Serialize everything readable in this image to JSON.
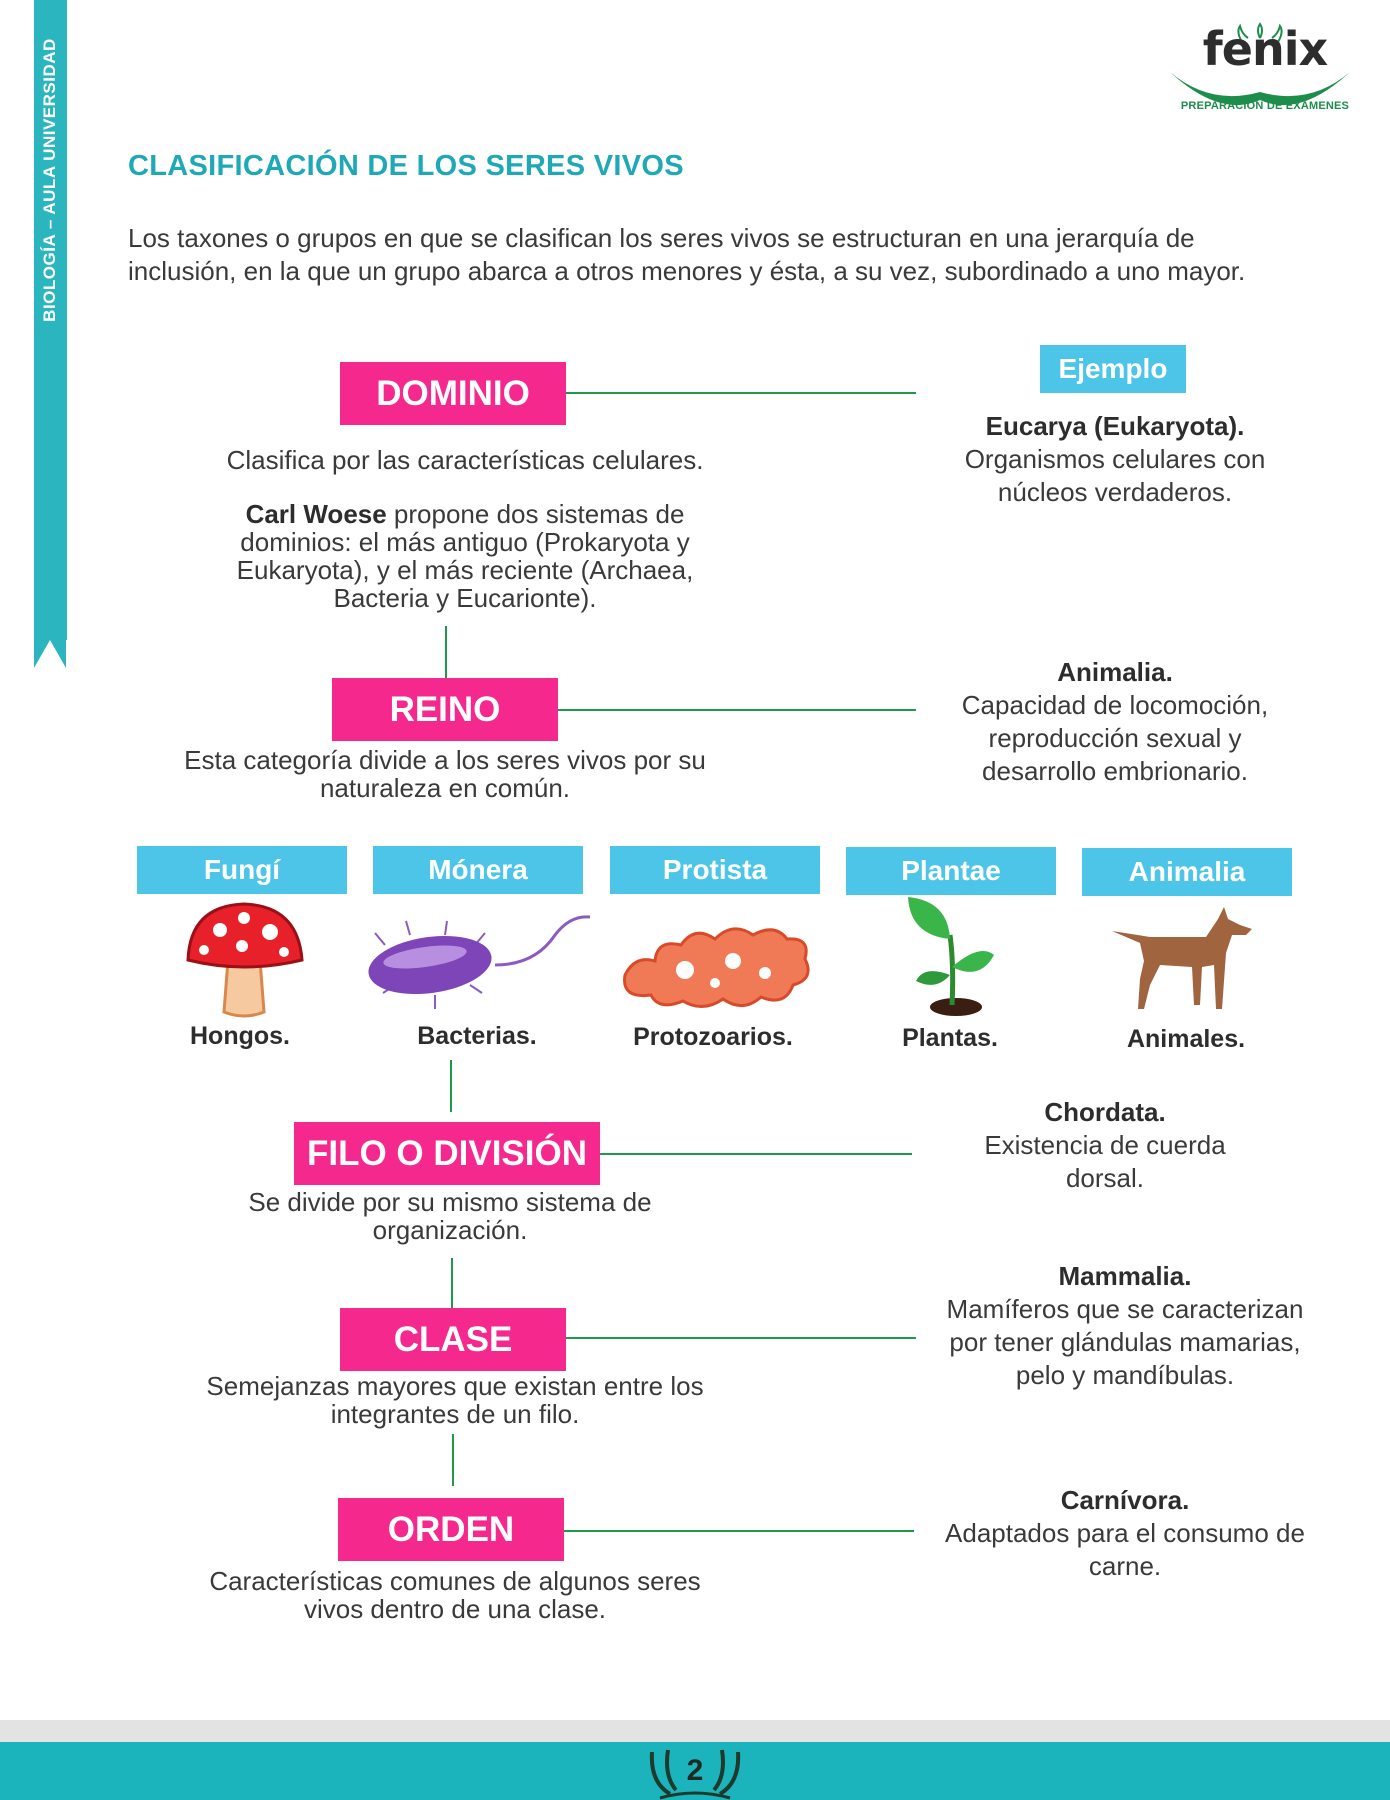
{
  "side_label": "BIOLOGÍA – AULA UNIVERSIDAD",
  "logo": {
    "name": "fenix",
    "tagline": "PREPARACIÓN DE EXÁMENES"
  },
  "title": "CLASIFICACIÓN DE LOS SERES VIVOS",
  "intro": "Los taxones o grupos en que se clasifican los seres vivos se estructuran en una jerarquía de inclusión, en la que un grupo abarca a otros menores y ésta, a su vez, subordinado a uno mayor.",
  "example_label": "Ejemplo",
  "levels": {
    "dominio": {
      "label": "DOMINIO",
      "desc": "Clasifica por las características celulares.",
      "note_bold": "Carl Woese",
      "note": " propone dos sistemas de dominios: el más antiguo (Prokaryota y Eukaryota), y el más reciente (Archaea, Bacteria y Eucarionte).",
      "example_title": "Eucarya (Eukaryota).",
      "example_text": "Organismos celulares con núcleos verdaderos."
    },
    "reino": {
      "label": "REINO",
      "desc": "Esta categoría divide a los seres vivos por su naturaleza en común.",
      "example_title": "Animalia.",
      "example_text": "Capacidad de locomoción, reproducción sexual y desarrollo embrionario."
    },
    "filo": {
      "label": "FILO O DIVISIÓN",
      "desc": "Se divide por su mismo sistema de organización.",
      "example_title": "Chordata.",
      "example_text": "Existencia de cuerda dorsal."
    },
    "clase": {
      "label": "CLASE",
      "desc": "Semejanzas mayores que existan entre los integrantes de un filo.",
      "example_title": "Mammalia.",
      "example_text": "Mamíferos que se caracterizan por tener glándulas mamarias, pelo y mandíbulas."
    },
    "orden": {
      "label": "ORDEN",
      "desc": "Características comunes de algunos seres vivos dentro de una clase.",
      "example_title": "Carnívora.",
      "example_text": "Adaptados para el consumo de carne."
    }
  },
  "kingdoms": [
    {
      "name": "Fungí",
      "caption": "Hongos.",
      "icon": "mushroom-icon"
    },
    {
      "name": "Mónera",
      "caption": "Bacterias.",
      "icon": "bacterium-icon"
    },
    {
      "name": "Protista",
      "caption": "Protozoarios.",
      "icon": "amoeba-icon"
    },
    {
      "name": "Plantae",
      "caption": "Plantas.",
      "icon": "sprout-icon"
    },
    {
      "name": "Animalia",
      "caption": "Animales.",
      "icon": "dog-icon"
    }
  ],
  "page_number": "2",
  "colors": {
    "teal": "#2bb5be",
    "pink": "#f5288d",
    "sky": "#4cc5e8",
    "green_line": "#1e9a4a"
  }
}
